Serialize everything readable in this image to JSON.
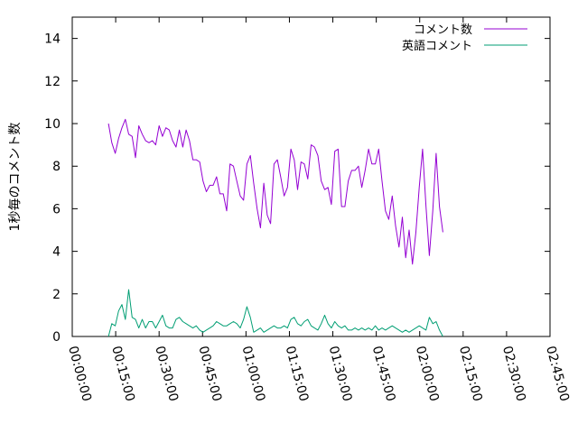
{
  "chart_data": {
    "type": "line",
    "title": "",
    "xlabel": "",
    "ylabel": "1秒毎のコメント数",
    "xlim": [
      "00:00:00",
      "02:45:00"
    ],
    "ylim": [
      0,
      15
    ],
    "x_ticks": [
      "00:00:00",
      "00:15:00",
      "00:30:00",
      "00:45:00",
      "01:00:00",
      "01:15:00",
      "01:30:00",
      "01:45:00",
      "02:00:00",
      "02:15:00",
      "02:30:00",
      "02:45:00"
    ],
    "y_ticks": [
      "0",
      "2",
      "4",
      "6",
      "8",
      "10",
      "12",
      "14"
    ],
    "grid": false,
    "legend_position": "top-right",
    "series": [
      {
        "name": "コメント数",
        "color": "#9400d3",
        "points": [
          [
            "00:12:30",
            10.0
          ],
          [
            "00:13:40",
            9.1
          ],
          [
            "00:14:50",
            8.6
          ],
          [
            "00:16:00",
            9.3
          ],
          [
            "00:17:10",
            9.8
          ],
          [
            "00:18:20",
            10.2
          ],
          [
            "00:19:30",
            9.5
          ],
          [
            "00:20:40",
            9.4
          ],
          [
            "00:21:50",
            8.4
          ],
          [
            "00:23:00",
            9.9
          ],
          [
            "00:24:10",
            9.5
          ],
          [
            "00:25:20",
            9.2
          ],
          [
            "00:26:30",
            9.1
          ],
          [
            "00:27:40",
            9.2
          ],
          [
            "00:28:50",
            9.0
          ],
          [
            "00:30:00",
            9.9
          ],
          [
            "00:31:10",
            9.4
          ],
          [
            "00:32:20",
            9.8
          ],
          [
            "00:33:30",
            9.7
          ],
          [
            "00:34:40",
            9.2
          ],
          [
            "00:35:50",
            8.9
          ],
          [
            "00:37:00",
            9.7
          ],
          [
            "00:38:10",
            8.9
          ],
          [
            "00:39:20",
            9.7
          ],
          [
            "00:40:30",
            9.2
          ],
          [
            "00:41:40",
            8.3
          ],
          [
            "00:42:50",
            8.3
          ],
          [
            "00:44:00",
            8.2
          ],
          [
            "00:45:10",
            7.3
          ],
          [
            "00:46:20",
            6.8
          ],
          [
            "00:47:30",
            7.1
          ],
          [
            "00:48:40",
            7.1
          ],
          [
            "00:49:50",
            7.5
          ],
          [
            "00:51:00",
            6.7
          ],
          [
            "00:52:10",
            6.7
          ],
          [
            "00:53:20",
            5.9
          ],
          [
            "00:54:30",
            8.1
          ],
          [
            "00:55:40",
            8.0
          ],
          [
            "00:56:50",
            7.3
          ],
          [
            "00:58:00",
            6.6
          ],
          [
            "00:59:10",
            6.4
          ],
          [
            "01:00:20",
            8.1
          ],
          [
            "01:01:30",
            8.5
          ],
          [
            "01:02:40",
            7.2
          ],
          [
            "01:03:50",
            6.0
          ],
          [
            "01:05:00",
            5.1
          ],
          [
            "01:06:10",
            7.2
          ],
          [
            "01:07:20",
            5.7
          ],
          [
            "01:08:30",
            5.3
          ],
          [
            "01:09:40",
            8.1
          ],
          [
            "01:10:50",
            8.3
          ],
          [
            "01:12:00",
            7.5
          ],
          [
            "01:13:10",
            6.6
          ],
          [
            "01:14:20",
            7.0
          ],
          [
            "01:15:30",
            8.8
          ],
          [
            "01:16:40",
            8.3
          ],
          [
            "01:17:50",
            6.9
          ],
          [
            "01:19:00",
            8.2
          ],
          [
            "01:20:10",
            8.1
          ],
          [
            "01:21:20",
            7.4
          ],
          [
            "01:22:30",
            9.0
          ],
          [
            "01:23:40",
            8.9
          ],
          [
            "01:24:50",
            8.5
          ],
          [
            "01:26:00",
            7.3
          ],
          [
            "01:27:10",
            6.9
          ],
          [
            "01:28:20",
            7.0
          ],
          [
            "01:29:30",
            6.2
          ],
          [
            "01:30:40",
            8.7
          ],
          [
            "01:31:50",
            8.8
          ],
          [
            "01:33:00",
            6.1
          ],
          [
            "01:34:10",
            6.1
          ],
          [
            "01:35:20",
            7.3
          ],
          [
            "01:36:30",
            7.8
          ],
          [
            "01:37:40",
            7.8
          ],
          [
            "01:38:50",
            8.0
          ],
          [
            "01:40:00",
            7.0
          ],
          [
            "01:41:10",
            7.8
          ],
          [
            "01:42:20",
            8.8
          ],
          [
            "01:43:30",
            8.1
          ],
          [
            "01:44:40",
            8.1
          ],
          [
            "01:45:50",
            8.8
          ],
          [
            "01:47:00",
            7.3
          ],
          [
            "01:48:10",
            5.9
          ],
          [
            "01:49:20",
            5.5
          ],
          [
            "01:50:30",
            6.6
          ],
          [
            "01:51:40",
            5.2
          ],
          [
            "01:52:50",
            4.2
          ],
          [
            "01:54:00",
            5.6
          ],
          [
            "01:55:10",
            3.7
          ],
          [
            "01:56:20",
            5.0
          ],
          [
            "01:57:30",
            3.4
          ],
          [
            "01:58:40",
            4.9
          ],
          [
            "01:59:50",
            7.0
          ],
          [
            "02:01:00",
            8.8
          ],
          [
            "02:02:10",
            6.1
          ],
          [
            "02:03:20",
            3.8
          ],
          [
            "02:04:30",
            5.9
          ],
          [
            "02:05:40",
            8.6
          ],
          [
            "02:06:50",
            6.1
          ],
          [
            "02:08:00",
            4.9
          ]
        ]
      },
      {
        "name": "英語コメント",
        "color": "#009e73",
        "points": [
          [
            "00:12:30",
            0.0
          ],
          [
            "00:13:40",
            0.6
          ],
          [
            "00:14:50",
            0.5
          ],
          [
            "00:16:00",
            1.2
          ],
          [
            "00:17:10",
            1.5
          ],
          [
            "00:18:20",
            0.8
          ],
          [
            "00:19:30",
            2.2
          ],
          [
            "00:20:40",
            0.9
          ],
          [
            "00:21:50",
            0.8
          ],
          [
            "00:23:00",
            0.4
          ],
          [
            "00:24:10",
            0.8
          ],
          [
            "00:25:20",
            0.4
          ],
          [
            "00:26:30",
            0.7
          ],
          [
            "00:27:40",
            0.7
          ],
          [
            "00:28:50",
            0.4
          ],
          [
            "00:30:00",
            0.7
          ],
          [
            "00:31:10",
            1.0
          ],
          [
            "00:32:20",
            0.5
          ],
          [
            "00:33:30",
            0.4
          ],
          [
            "00:34:40",
            0.4
          ],
          [
            "00:35:50",
            0.8
          ],
          [
            "00:37:00",
            0.9
          ],
          [
            "00:38:10",
            0.7
          ],
          [
            "00:39:20",
            0.6
          ],
          [
            "00:40:30",
            0.5
          ],
          [
            "00:41:40",
            0.4
          ],
          [
            "00:42:50",
            0.5
          ],
          [
            "00:44:00",
            0.3
          ],
          [
            "00:45:10",
            0.2
          ],
          [
            "00:46:20",
            0.3
          ],
          [
            "00:47:30",
            0.4
          ],
          [
            "00:48:40",
            0.5
          ],
          [
            "00:49:50",
            0.7
          ],
          [
            "00:51:00",
            0.6
          ],
          [
            "00:52:10",
            0.5
          ],
          [
            "00:53:20",
            0.5
          ],
          [
            "00:54:30",
            0.6
          ],
          [
            "00:55:40",
            0.7
          ],
          [
            "00:56:50",
            0.6
          ],
          [
            "00:58:00",
            0.4
          ],
          [
            "00:59:10",
            0.8
          ],
          [
            "01:00:20",
            1.4
          ],
          [
            "01:01:30",
            0.9
          ],
          [
            "01:02:40",
            0.2
          ],
          [
            "01:03:50",
            0.3
          ],
          [
            "01:05:00",
            0.4
          ],
          [
            "01:06:10",
            0.2
          ],
          [
            "01:07:20",
            0.3
          ],
          [
            "01:08:30",
            0.4
          ],
          [
            "01:09:40",
            0.5
          ],
          [
            "01:10:50",
            0.4
          ],
          [
            "01:12:00",
            0.4
          ],
          [
            "01:13:10",
            0.5
          ],
          [
            "01:14:20",
            0.4
          ],
          [
            "01:15:30",
            0.8
          ],
          [
            "01:16:40",
            0.9
          ],
          [
            "01:17:50",
            0.6
          ],
          [
            "01:19:00",
            0.5
          ],
          [
            "01:20:10",
            0.7
          ],
          [
            "01:21:20",
            0.8
          ],
          [
            "01:22:30",
            0.5
          ],
          [
            "01:23:40",
            0.4
          ],
          [
            "01:24:50",
            0.3
          ],
          [
            "01:26:00",
            0.6
          ],
          [
            "01:27:10",
            1.0
          ],
          [
            "01:28:20",
            0.6
          ],
          [
            "01:29:30",
            0.4
          ],
          [
            "01:30:40",
            0.7
          ],
          [
            "01:31:50",
            0.5
          ],
          [
            "01:33:00",
            0.4
          ],
          [
            "01:34:10",
            0.5
          ],
          [
            "01:35:20",
            0.3
          ],
          [
            "01:36:30",
            0.3
          ],
          [
            "01:37:40",
            0.4
          ],
          [
            "01:38:50",
            0.3
          ],
          [
            "01:40:00",
            0.4
          ],
          [
            "01:41:10",
            0.3
          ],
          [
            "01:42:20",
            0.4
          ],
          [
            "01:43:30",
            0.3
          ],
          [
            "01:44:40",
            0.5
          ],
          [
            "01:45:50",
            0.3
          ],
          [
            "01:47:00",
            0.4
          ],
          [
            "01:48:10",
            0.3
          ],
          [
            "01:49:20",
            0.4
          ],
          [
            "01:50:30",
            0.5
          ],
          [
            "01:51:40",
            0.4
          ],
          [
            "01:52:50",
            0.3
          ],
          [
            "01:54:00",
            0.2
          ],
          [
            "01:55:10",
            0.3
          ],
          [
            "01:56:20",
            0.2
          ],
          [
            "01:57:30",
            0.3
          ],
          [
            "01:58:40",
            0.4
          ],
          [
            "01:59:50",
            0.5
          ],
          [
            "02:01:00",
            0.4
          ],
          [
            "02:02:10",
            0.3
          ],
          [
            "02:03:20",
            0.9
          ],
          [
            "02:04:30",
            0.6
          ],
          [
            "02:05:40",
            0.7
          ],
          [
            "02:06:50",
            0.3
          ],
          [
            "02:08:00",
            0.0
          ]
        ]
      }
    ]
  }
}
